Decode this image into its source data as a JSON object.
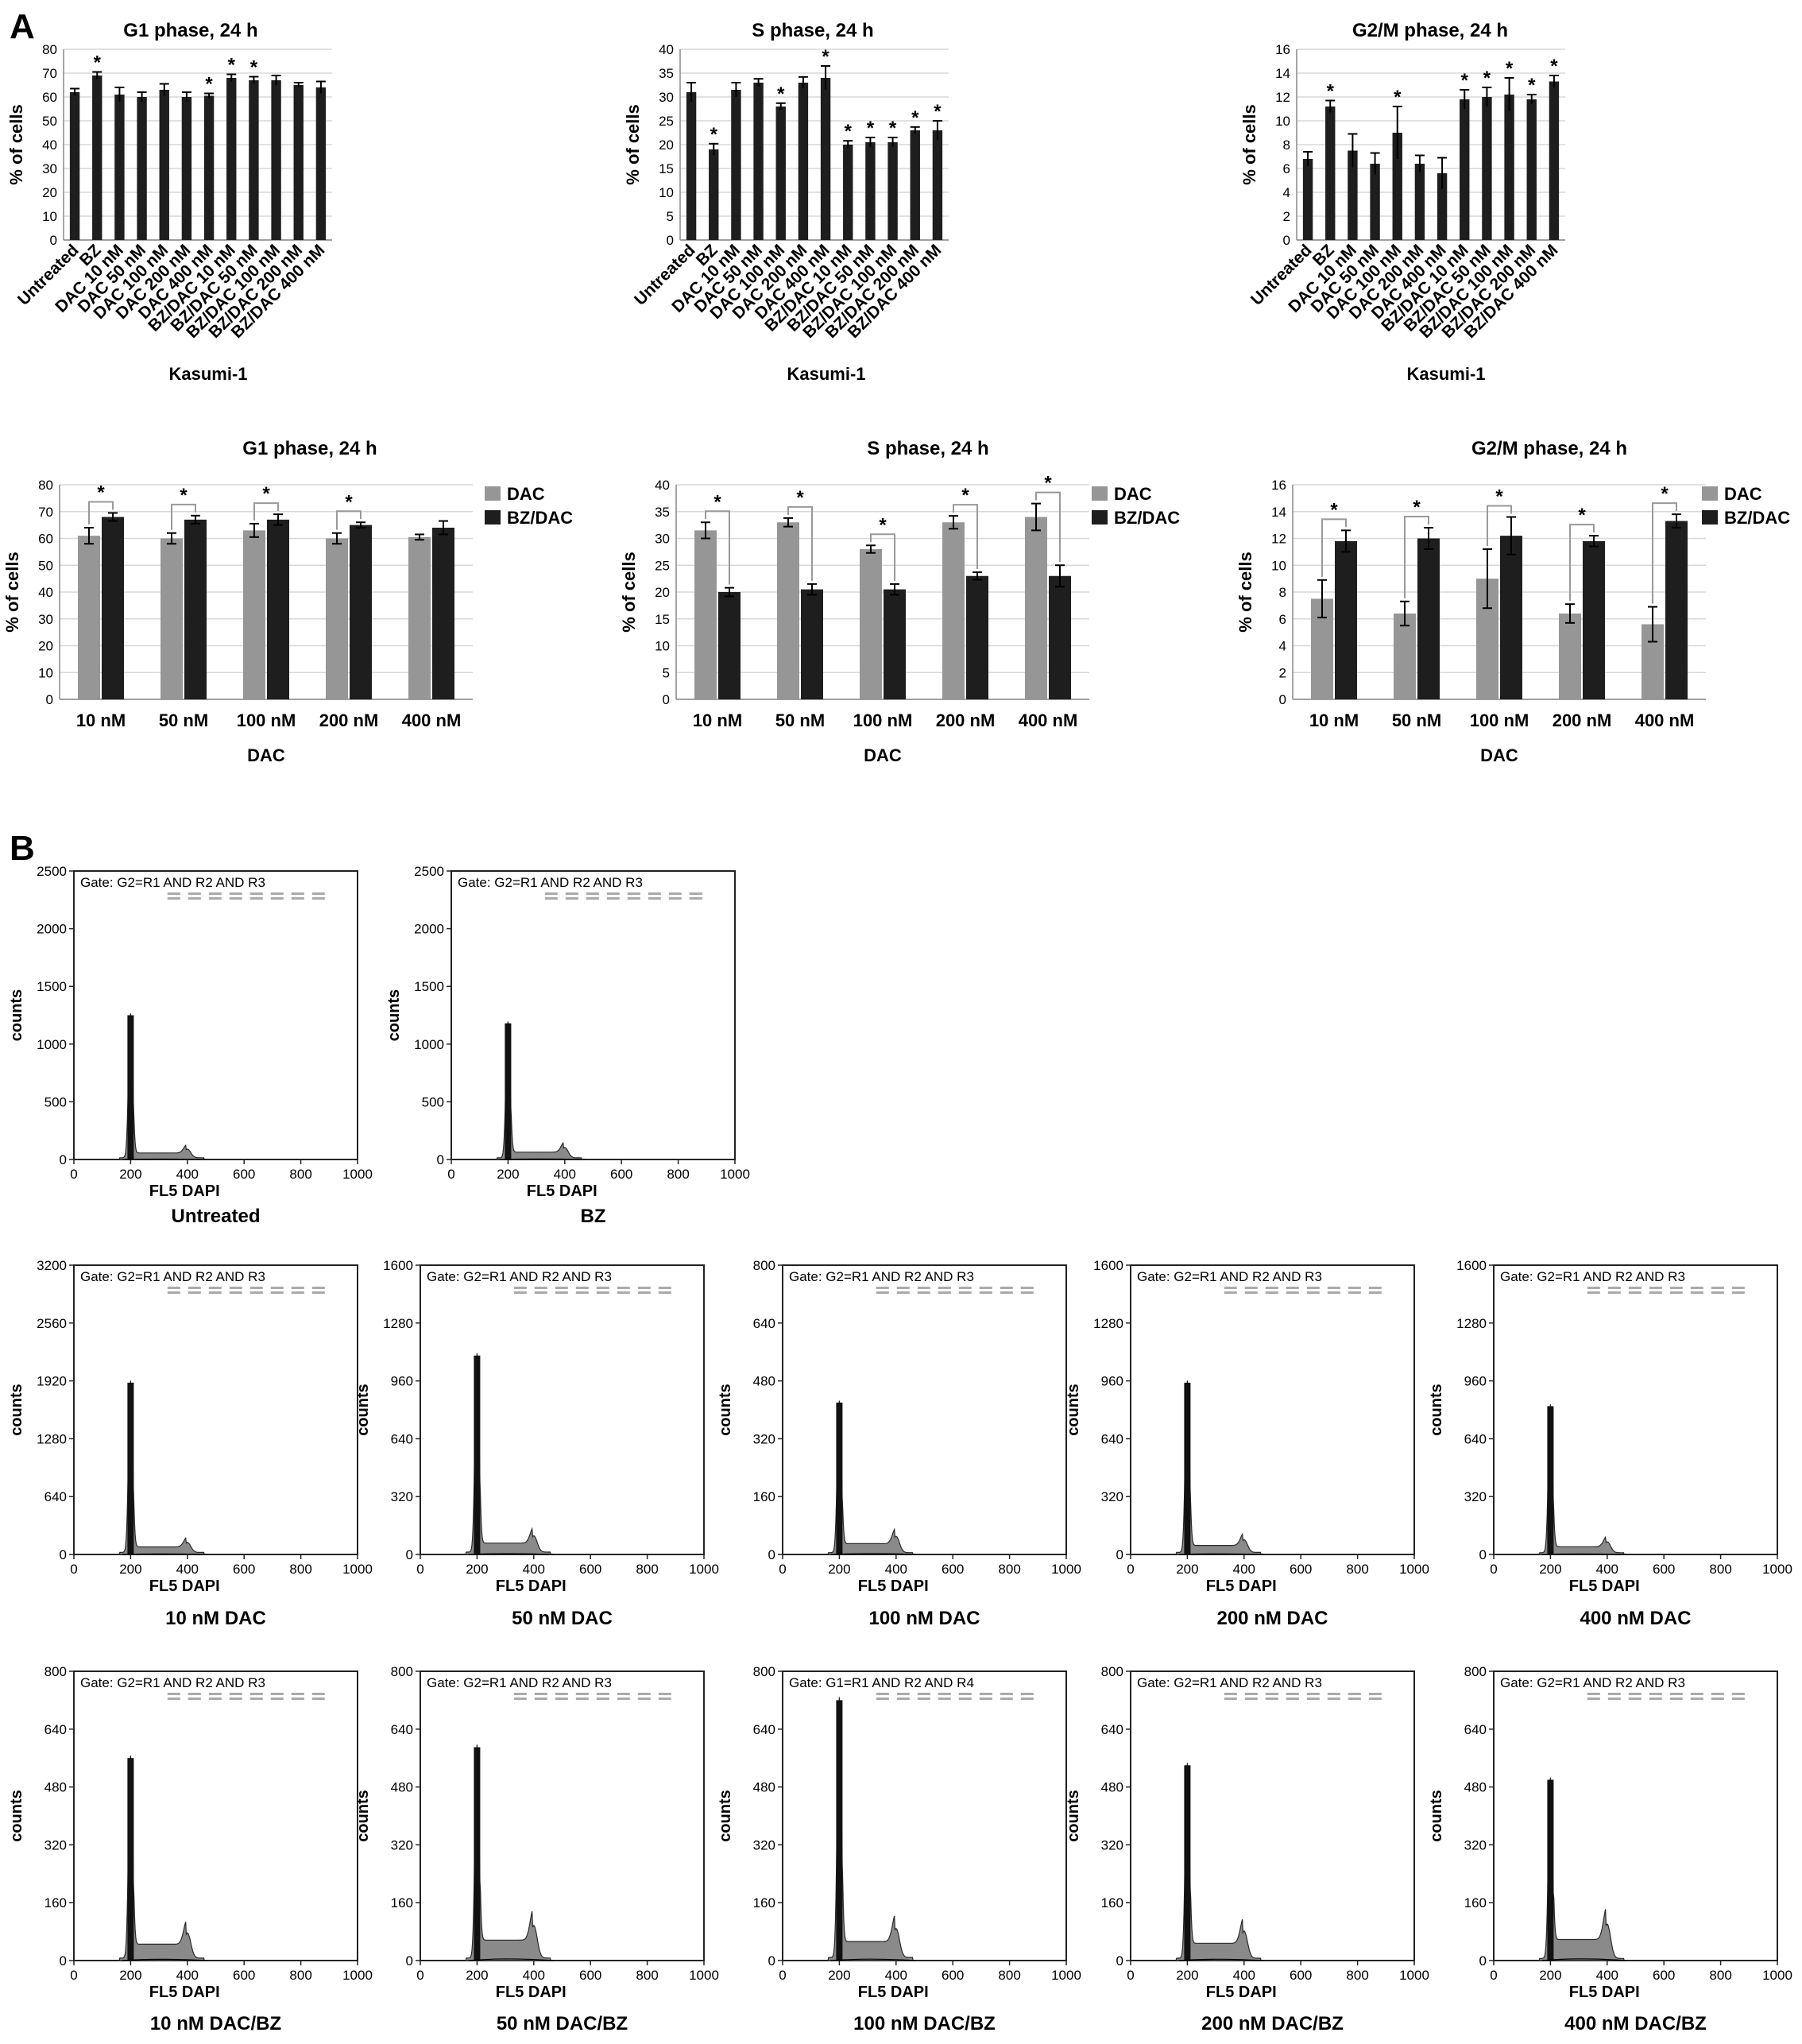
{
  "panel_labels": [
    "A",
    "B"
  ],
  "colors": {
    "dac": "#969696",
    "bzdac": "#1e1e1e",
    "bar": "#1e1e1e",
    "histo": "#2a2a2a"
  },
  "chart_data": [
    {
      "id": "a-g1",
      "type": "bar",
      "title": "G1 phase, 24 h",
      "ylabel": "% of cells",
      "xlabel": "Kasumi-1",
      "ylim": [
        0,
        80
      ],
      "yticks": [
        0,
        10,
        20,
        30,
        40,
        50,
        60,
        70,
        80
      ],
      "categories": [
        "Untreated",
        "BZ",
        "DAC 10 nM",
        "DAC 50 nM",
        "DAC 100 nM",
        "DAC 200 nM",
        "DAC 400 nM",
        "BZ/DAC 10 nM",
        "BZ/DAC 50 nM",
        "BZ/DAC 100 nM",
        "BZ/DAC 200 nM",
        "BZ/DAC 400 nM"
      ],
      "values": [
        62,
        69,
        61,
        60,
        63,
        60,
        60.5,
        68,
        67,
        67,
        65,
        64
      ],
      "errors": [
        1.5,
        1.5,
        3,
        2,
        2.5,
        2,
        1,
        1.5,
        1.5,
        2,
        1,
        2.5
      ],
      "significant": [
        false,
        true,
        false,
        false,
        false,
        false,
        true,
        true,
        true,
        false,
        false,
        false
      ]
    },
    {
      "id": "a-s",
      "type": "bar",
      "title": "S phase, 24 h",
      "ylabel": "% of cells",
      "xlabel": "Kasumi-1",
      "ylim": [
        0,
        40
      ],
      "yticks": [
        0,
        5,
        10,
        15,
        20,
        25,
        30,
        35,
        40
      ],
      "categories": [
        "Untreated",
        "BZ",
        "DAC 10 nM",
        "DAC 50 nM",
        "DAC 100 nM",
        "DAC 200 nM",
        "DAC 400 nM",
        "BZ/DAC 10 nM",
        "BZ/DAC 50 nM",
        "BZ/DAC 100 nM",
        "BZ/DAC 200 nM",
        "BZ/DAC 400 nM"
      ],
      "values": [
        31,
        19,
        31.5,
        33,
        28,
        33,
        34,
        20,
        20.5,
        20.5,
        23,
        23
      ],
      "errors": [
        2,
        1.2,
        1.5,
        0.8,
        0.7,
        1.2,
        2.5,
        0.8,
        1,
        1,
        0.7,
        2
      ],
      "significant": [
        false,
        true,
        false,
        false,
        true,
        false,
        true,
        true,
        true,
        true,
        true,
        true
      ]
    },
    {
      "id": "a-g2m",
      "type": "bar",
      "title": "G2/M phase, 24 h",
      "ylabel": "% of cells",
      "xlabel": "Kasumi-1",
      "ylim": [
        0,
        16
      ],
      "yticks": [
        0,
        2,
        4,
        6,
        8,
        10,
        12,
        14,
        16
      ],
      "categories": [
        "Untreated",
        "BZ",
        "DAC 10 nM",
        "DAC 50 nM",
        "DAC 100 nM",
        "DAC 200 nM",
        "DAC 400 nM",
        "BZ/DAC 10 nM",
        "BZ/DAC 50 nM",
        "BZ/DAC 100 nM",
        "BZ/DAC 200 nM",
        "BZ/DAC 400 nM"
      ],
      "values": [
        6.8,
        11.2,
        7.5,
        6.4,
        9,
        6.4,
        5.6,
        11.8,
        12,
        12.2,
        11.8,
        13.3
      ],
      "errors": [
        0.6,
        0.5,
        1.4,
        0.9,
        2.2,
        0.7,
        1.3,
        0.8,
        0.8,
        1.4,
        0.4,
        0.5
      ],
      "significant": [
        false,
        true,
        false,
        false,
        true,
        false,
        false,
        true,
        true,
        true,
        true,
        true
      ]
    },
    {
      "id": "a2-g1",
      "type": "bar",
      "title": "G1 phase, 24 h",
      "ylabel": "% of cells",
      "xlabel": "DAC",
      "ylim": [
        0,
        80
      ],
      "yticks": [
        0,
        10,
        20,
        30,
        40,
        50,
        60,
        70,
        80
      ],
      "categories": [
        "10 nM",
        "50 nM",
        "100 nM",
        "200 nM",
        "400 nM"
      ],
      "series": [
        {
          "name": "DAC",
          "values": [
            61,
            60,
            63,
            60,
            60.5
          ],
          "errors": [
            3,
            2,
            2.5,
            2,
            1
          ]
        },
        {
          "name": "BZ/DAC",
          "values": [
            68,
            67,
            67,
            65,
            64
          ],
          "errors": [
            1.5,
            1.5,
            2,
            1,
            2.5
          ]
        }
      ],
      "significant": [
        true,
        true,
        true,
        true,
        false
      ]
    },
    {
      "id": "a2-s",
      "type": "bar",
      "title": "S phase, 24 h",
      "ylabel": "% of cells",
      "xlabel": "DAC",
      "ylim": [
        0,
        40
      ],
      "yticks": [
        0,
        5,
        10,
        15,
        20,
        25,
        30,
        35,
        40
      ],
      "categories": [
        "10 nM",
        "50 nM",
        "100 nM",
        "200 nM",
        "400 nM"
      ],
      "series": [
        {
          "name": "DAC",
          "values": [
            31.5,
            33,
            28,
            33,
            34
          ],
          "errors": [
            1.5,
            0.8,
            0.7,
            1.2,
            2.5
          ]
        },
        {
          "name": "BZ/DAC",
          "values": [
            20,
            20.5,
            20.5,
            23,
            23
          ],
          "errors": [
            0.8,
            1,
            1,
            0.7,
            2
          ]
        }
      ],
      "significant": [
        true,
        true,
        true,
        true,
        true
      ]
    },
    {
      "id": "a2-g2m",
      "type": "bar",
      "title": "G2/M phase, 24 h",
      "ylabel": "% of cells",
      "xlabel": "DAC",
      "ylim": [
        0,
        16
      ],
      "yticks": [
        0,
        2,
        4,
        6,
        8,
        10,
        12,
        14,
        16
      ],
      "categories": [
        "10 nM",
        "50 nM",
        "100 nM",
        "200 nM",
        "400 nM"
      ],
      "series": [
        {
          "name": "DAC",
          "values": [
            7.5,
            6.4,
            9,
            6.4,
            5.6
          ],
          "errors": [
            1.4,
            0.9,
            2.2,
            0.7,
            1.3
          ]
        },
        {
          "name": "BZ/DAC",
          "values": [
            11.8,
            12,
            12.2,
            11.8,
            13.3
          ],
          "errors": [
            0.8,
            0.8,
            1.4,
            0.4,
            0.5
          ]
        }
      ],
      "significant": [
        true,
        true,
        true,
        true,
        true
      ]
    },
    {
      "id": "b-untreated",
      "type": "histogram",
      "label": "Untreated",
      "gate": "Gate: G2=R1 AND R2 AND R3",
      "xlabel": "FL5  DAPI",
      "ylabel": "counts",
      "xlim": [
        0,
        1000
      ],
      "xticks": [
        0,
        200,
        400,
        600,
        800,
        1000
      ],
      "ylim": [
        0,
        2500
      ],
      "yticks": [
        0,
        500,
        1000,
        1500,
        2000,
        2500
      ],
      "peaks": [
        {
          "x": 200,
          "count": 1250
        },
        {
          "x": 400,
          "count": 75
        }
      ]
    },
    {
      "id": "b-bz",
      "type": "histogram",
      "label": "BZ",
      "gate": "Gate: G2=R1 AND R2 AND R3",
      "xlabel": "FL5  DAPI",
      "ylabel": "counts",
      "xlim": [
        0,
        1000
      ],
      "xticks": [
        0,
        200,
        400,
        600,
        800,
        1000
      ],
      "ylim": [
        0,
        2500
      ],
      "yticks": [
        0,
        500,
        1000,
        1500,
        2000,
        2500
      ],
      "peaks": [
        {
          "x": 200,
          "count": 1180
        },
        {
          "x": 400,
          "count": 90
        }
      ]
    },
    {
      "id": "b-dac10",
      "type": "histogram",
      "label": "10 nM DAC",
      "gate": "Gate: G2=R1 AND R2 AND R3",
      "xlabel": "FL5  DAPI",
      "ylabel": "counts",
      "xlim": [
        0,
        1000
      ],
      "xticks": [
        0,
        200,
        400,
        600,
        800,
        1000
      ],
      "ylim": [
        0,
        3200
      ],
      "yticks": [
        0,
        640,
        1280,
        1920,
        2560,
        3200
      ],
      "peaks": [
        {
          "x": 200,
          "count": 1900
        },
        {
          "x": 400,
          "count": 110
        }
      ]
    },
    {
      "id": "b-dac50",
      "type": "histogram",
      "label": "50 nM DAC",
      "gate": "Gate: G2=R1 AND R2 AND R3",
      "xlabel": "FL5  DAPI",
      "ylabel": "counts",
      "xlim": [
        0,
        1000
      ],
      "xticks": [
        0,
        200,
        400,
        600,
        800,
        1000
      ],
      "ylim": [
        0,
        1600
      ],
      "yticks": [
        0,
        320,
        640,
        960,
        1280,
        1600
      ],
      "peaks": [
        {
          "x": 200,
          "count": 1100
        },
        {
          "x": 400,
          "count": 90
        }
      ]
    },
    {
      "id": "b-dac100",
      "type": "histogram",
      "label": "100 nM DAC",
      "gate": "Gate: G2=R1 AND R2 AND R3",
      "xlabel": "FL5  DAPI",
      "ylabel": "counts",
      "xlim": [
        0,
        1000
      ],
      "xticks": [
        0,
        200,
        400,
        600,
        800,
        1000
      ],
      "ylim": [
        0,
        800
      ],
      "yticks": [
        0,
        160,
        320,
        480,
        640,
        800
      ],
      "peaks": [
        {
          "x": 200,
          "count": 420
        },
        {
          "x": 400,
          "count": 45
        }
      ]
    },
    {
      "id": "b-dac200",
      "type": "histogram",
      "label": "200 nM DAC",
      "gate": "Gate: G2=R1 AND R2 AND R3",
      "xlabel": "FL5  DAPI",
      "ylabel": "counts",
      "xlim": [
        0,
        1000
      ],
      "xticks": [
        0,
        200,
        400,
        600,
        800,
        1000
      ],
      "ylim": [
        0,
        1600
      ],
      "yticks": [
        0,
        320,
        640,
        960,
        1280,
        1600
      ],
      "peaks": [
        {
          "x": 200,
          "count": 950
        },
        {
          "x": 400,
          "count": 70
        }
      ]
    },
    {
      "id": "b-dac400",
      "type": "histogram",
      "label": "400 nM DAC",
      "gate": "Gate: G2=R1 AND R2 AND R3",
      "xlabel": "FL5  DAPI",
      "ylabel": "counts",
      "xlim": [
        0,
        1000
      ],
      "xticks": [
        0,
        200,
        400,
        600,
        800,
        1000
      ],
      "ylim": [
        0,
        1600
      ],
      "yticks": [
        0,
        320,
        640,
        960,
        1280,
        1600
      ],
      "peaks": [
        {
          "x": 200,
          "count": 820
        },
        {
          "x": 400,
          "count": 60
        }
      ]
    },
    {
      "id": "b-dacbz10",
      "type": "histogram",
      "label": "10 nM DAC/BZ",
      "gate": "Gate: G2=R1 AND R2 AND R3",
      "xlabel": "FL5  DAPI",
      "ylabel": "counts",
      "xlim": [
        0,
        1000
      ],
      "xticks": [
        0,
        200,
        400,
        600,
        800,
        1000
      ],
      "ylim": [
        0,
        800
      ],
      "yticks": [
        0,
        160,
        320,
        480,
        640,
        800
      ],
      "peaks": [
        {
          "x": 200,
          "count": 560
        },
        {
          "x": 400,
          "count": 70
        }
      ]
    },
    {
      "id": "b-dacbz50",
      "type": "histogram",
      "label": "50 nM DAC/BZ",
      "gate": "Gate: G2=R1 AND R2 AND R3",
      "xlabel": "FL5  DAPI",
      "ylabel": "counts",
      "xlim": [
        0,
        1000
      ],
      "xticks": [
        0,
        200,
        400,
        600,
        800,
        1000
      ],
      "ylim": [
        0,
        800
      ],
      "yticks": [
        0,
        160,
        320,
        480,
        640,
        800
      ],
      "peaks": [
        {
          "x": 200,
          "count": 590
        },
        {
          "x": 400,
          "count": 90
        }
      ]
    },
    {
      "id": "b-dacbz100",
      "type": "histogram",
      "label": "100 nM DAC/BZ",
      "gate": "Gate: G1=R1 AND R2 AND R4",
      "xlabel": "FL5  DAPI",
      "ylabel": "counts",
      "xlim": [
        0,
        1000
      ],
      "xticks": [
        0,
        200,
        400,
        600,
        800,
        1000
      ],
      "ylim": [
        0,
        800
      ],
      "yticks": [
        0,
        160,
        320,
        480,
        640,
        800
      ],
      "peaks": [
        {
          "x": 200,
          "count": 720
        },
        {
          "x": 400,
          "count": 80
        }
      ]
    },
    {
      "id": "b-dacbz200",
      "type": "histogram",
      "label": "200 nM DAC/BZ",
      "gate": "Gate: G2=R1 AND R2 AND R3",
      "xlabel": "FL5  DAPI",
      "ylabel": "counts",
      "xlim": [
        0,
        1000
      ],
      "xticks": [
        0,
        200,
        400,
        600,
        800,
        1000
      ],
      "ylim": [
        0,
        800
      ],
      "yticks": [
        0,
        160,
        320,
        480,
        640,
        800
      ],
      "peaks": [
        {
          "x": 200,
          "count": 540
        },
        {
          "x": 400,
          "count": 75
        }
      ]
    },
    {
      "id": "b-dacbz400",
      "type": "histogram",
      "label": "400 nM DAC/BZ",
      "gate": "Gate: G2=R1 AND R2 AND R3",
      "xlabel": "FL5  DAPI",
      "ylabel": "counts",
      "xlim": [
        0,
        1000
      ],
      "xticks": [
        0,
        200,
        400,
        600,
        800,
        1000
      ],
      "ylim": [
        0,
        800
      ],
      "yticks": [
        0,
        160,
        320,
        480,
        640,
        800
      ],
      "peaks": [
        {
          "x": 200,
          "count": 500
        },
        {
          "x": 400,
          "count": 95
        }
      ]
    }
  ]
}
